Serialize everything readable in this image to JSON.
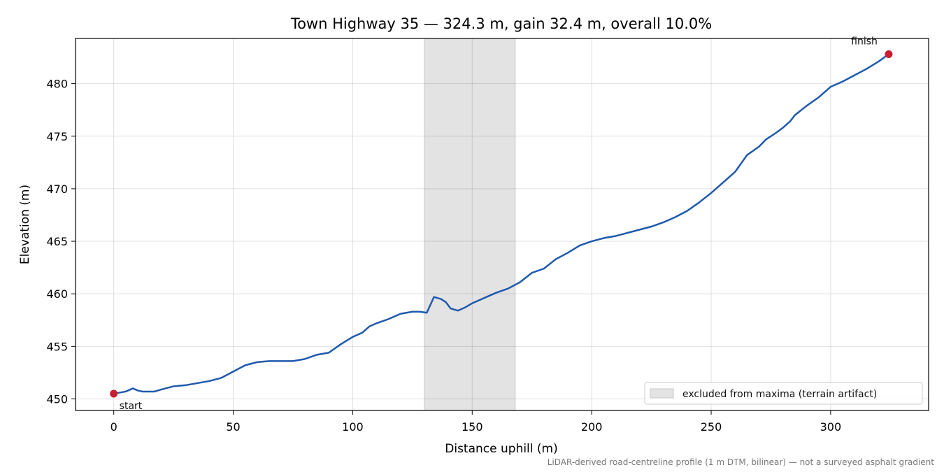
{
  "chart_data": {
    "type": "line",
    "title": "Town Highway 35 — 324.3 m, gain 32.4 m, overall 10.0%",
    "xlabel": "Distance uphill (m)",
    "ylabel": "Elevation (m)",
    "xlim": [
      -16,
      341
    ],
    "ylim": [
      448.9,
      484.3
    ],
    "xticks": [
      0,
      50,
      100,
      150,
      200,
      250,
      300
    ],
    "yticks": [
      450,
      455,
      460,
      465,
      470,
      475,
      480
    ],
    "grid": true,
    "series": [
      {
        "color": "#1f5aad",
        "points": [
          [
            0,
            450.5
          ],
          [
            5,
            450.7
          ],
          [
            8,
            451.0
          ],
          [
            10,
            450.8
          ],
          [
            12,
            450.7
          ],
          [
            17,
            450.7
          ],
          [
            20,
            450.9
          ],
          [
            25,
            451.2
          ],
          [
            30,
            451.3
          ],
          [
            35,
            451.5
          ],
          [
            40,
            451.7
          ],
          [
            45,
            452.0
          ],
          [
            50,
            452.6
          ],
          [
            55,
            453.2
          ],
          [
            60,
            453.5
          ],
          [
            65,
            453.6
          ],
          [
            70,
            453.6
          ],
          [
            75,
            453.6
          ],
          [
            80,
            453.8
          ],
          [
            85,
            454.2
          ],
          [
            90,
            454.4
          ],
          [
            95,
            455.2
          ],
          [
            100,
            455.9
          ],
          [
            104,
            456.3
          ],
          [
            107,
            456.9
          ],
          [
            110,
            457.2
          ],
          [
            115,
            457.6
          ],
          [
            120,
            458.1
          ],
          [
            125,
            458.3
          ],
          [
            128,
            458.3
          ],
          [
            131,
            458.2
          ],
          [
            134,
            459.7
          ],
          [
            137,
            459.5
          ],
          [
            139,
            459.2
          ],
          [
            141,
            458.6
          ],
          [
            144,
            458.4
          ],
          [
            147,
            458.7
          ],
          [
            150,
            459.1
          ],
          [
            155,
            459.6
          ],
          [
            160,
            460.1
          ],
          [
            165,
            460.5
          ],
          [
            170,
            461.1
          ],
          [
            175,
            462.0
          ],
          [
            180,
            462.4
          ],
          [
            185,
            463.3
          ],
          [
            190,
            463.9
          ],
          [
            195,
            464.6
          ],
          [
            200,
            465.0
          ],
          [
            205,
            465.3
          ],
          [
            210,
            465.5
          ],
          [
            215,
            465.8
          ],
          [
            220,
            466.1
          ],
          [
            225,
            466.4
          ],
          [
            230,
            466.8
          ],
          [
            235,
            467.3
          ],
          [
            240,
            467.9
          ],
          [
            245,
            468.7
          ],
          [
            250,
            469.6
          ],
          [
            255,
            470.6
          ],
          [
            260,
            471.6
          ],
          [
            265,
            473.2
          ],
          [
            270,
            474.0
          ],
          [
            273,
            474.7
          ],
          [
            277,
            475.3
          ],
          [
            280,
            475.8
          ],
          [
            283,
            476.4
          ],
          [
            285,
            477.0
          ],
          [
            290,
            477.9
          ],
          [
            295,
            478.7
          ],
          [
            300,
            479.7
          ],
          [
            305,
            480.2
          ],
          [
            310,
            480.8
          ],
          [
            315,
            481.4
          ],
          [
            320,
            482.1
          ],
          [
            324.3,
            482.8
          ]
        ]
      }
    ],
    "excluded_range": [
      130,
      168
    ],
    "markers": [
      {
        "x": 0,
        "y": 450.5,
        "label": "start",
        "color": "#c81e2d"
      },
      {
        "x": 324.3,
        "y": 482.8,
        "label": "finish",
        "color": "#c81e2d"
      }
    ],
    "legend": {
      "placement": "lower-right",
      "entries": [
        {
          "label": "excluded from maxima (terrain artifact)",
          "color": "#e3e3e3"
        }
      ]
    },
    "footnote": "LiDAR-derived road-centreline profile (1 m DTM, bilinear) — not a surveyed asphalt gradient"
  }
}
